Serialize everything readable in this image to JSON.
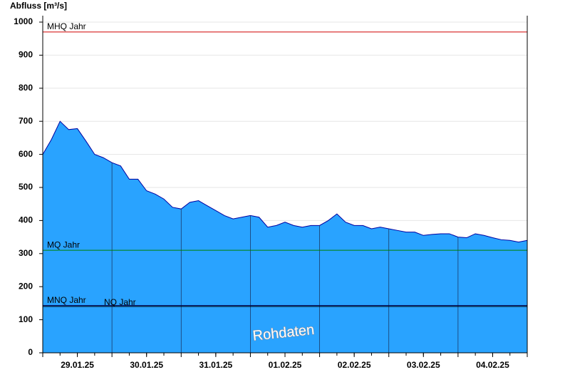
{
  "chart_data": {
    "type": "area",
    "title": "Abfluss [m³/s]",
    "watermark": "Rohdaten",
    "categories": [
      null,
      null,
      null,
      null,
      "29.01.25",
      null,
      null,
      null,
      null,
      null,
      null,
      null,
      "30.01.25",
      null,
      null,
      null,
      null,
      null,
      null,
      null,
      "31.01.25",
      null,
      null,
      null,
      null,
      null,
      null,
      null,
      "01.02.25",
      null,
      null,
      null,
      null,
      null,
      null,
      null,
      "02.02.25",
      null,
      null,
      null,
      null,
      null,
      null,
      null,
      "03.02.25",
      null,
      null,
      null,
      null,
      null,
      null,
      null,
      "04.02.25",
      null,
      null,
      null,
      null
    ],
    "values": [
      600,
      645,
      700,
      675,
      678,
      640,
      600,
      590,
      575,
      565,
      525,
      525,
      490,
      480,
      465,
      440,
      435,
      455,
      460,
      445,
      430,
      415,
      405,
      410,
      415,
      410,
      380,
      385,
      395,
      385,
      380,
      385,
      385,
      400,
      420,
      395,
      385,
      385,
      375,
      380,
      375,
      370,
      365,
      365,
      355,
      358,
      360,
      360,
      350,
      348,
      360,
      355,
      348,
      342,
      340,
      335,
      340
    ],
    "color": "#29a3ff",
    "line_color": "#0000a0",
    "ylim": [
      0,
      1000
    ],
    "yticks": [
      0,
      100,
      200,
      300,
      400,
      500,
      600,
      700,
      800,
      900,
      1000
    ],
    "grid": true,
    "reference_lines": [
      {
        "label": "MHQ Jahr",
        "value": 970,
        "color": "#d00000"
      },
      {
        "label": "MQ Jahr",
        "value": 310,
        "color": "#008000"
      },
      {
        "label": "MNQ Jahr",
        "value": 143,
        "color": "#000050"
      },
      {
        "label": "NQ Jahr",
        "value": 140,
        "color": "#000000"
      }
    ]
  }
}
